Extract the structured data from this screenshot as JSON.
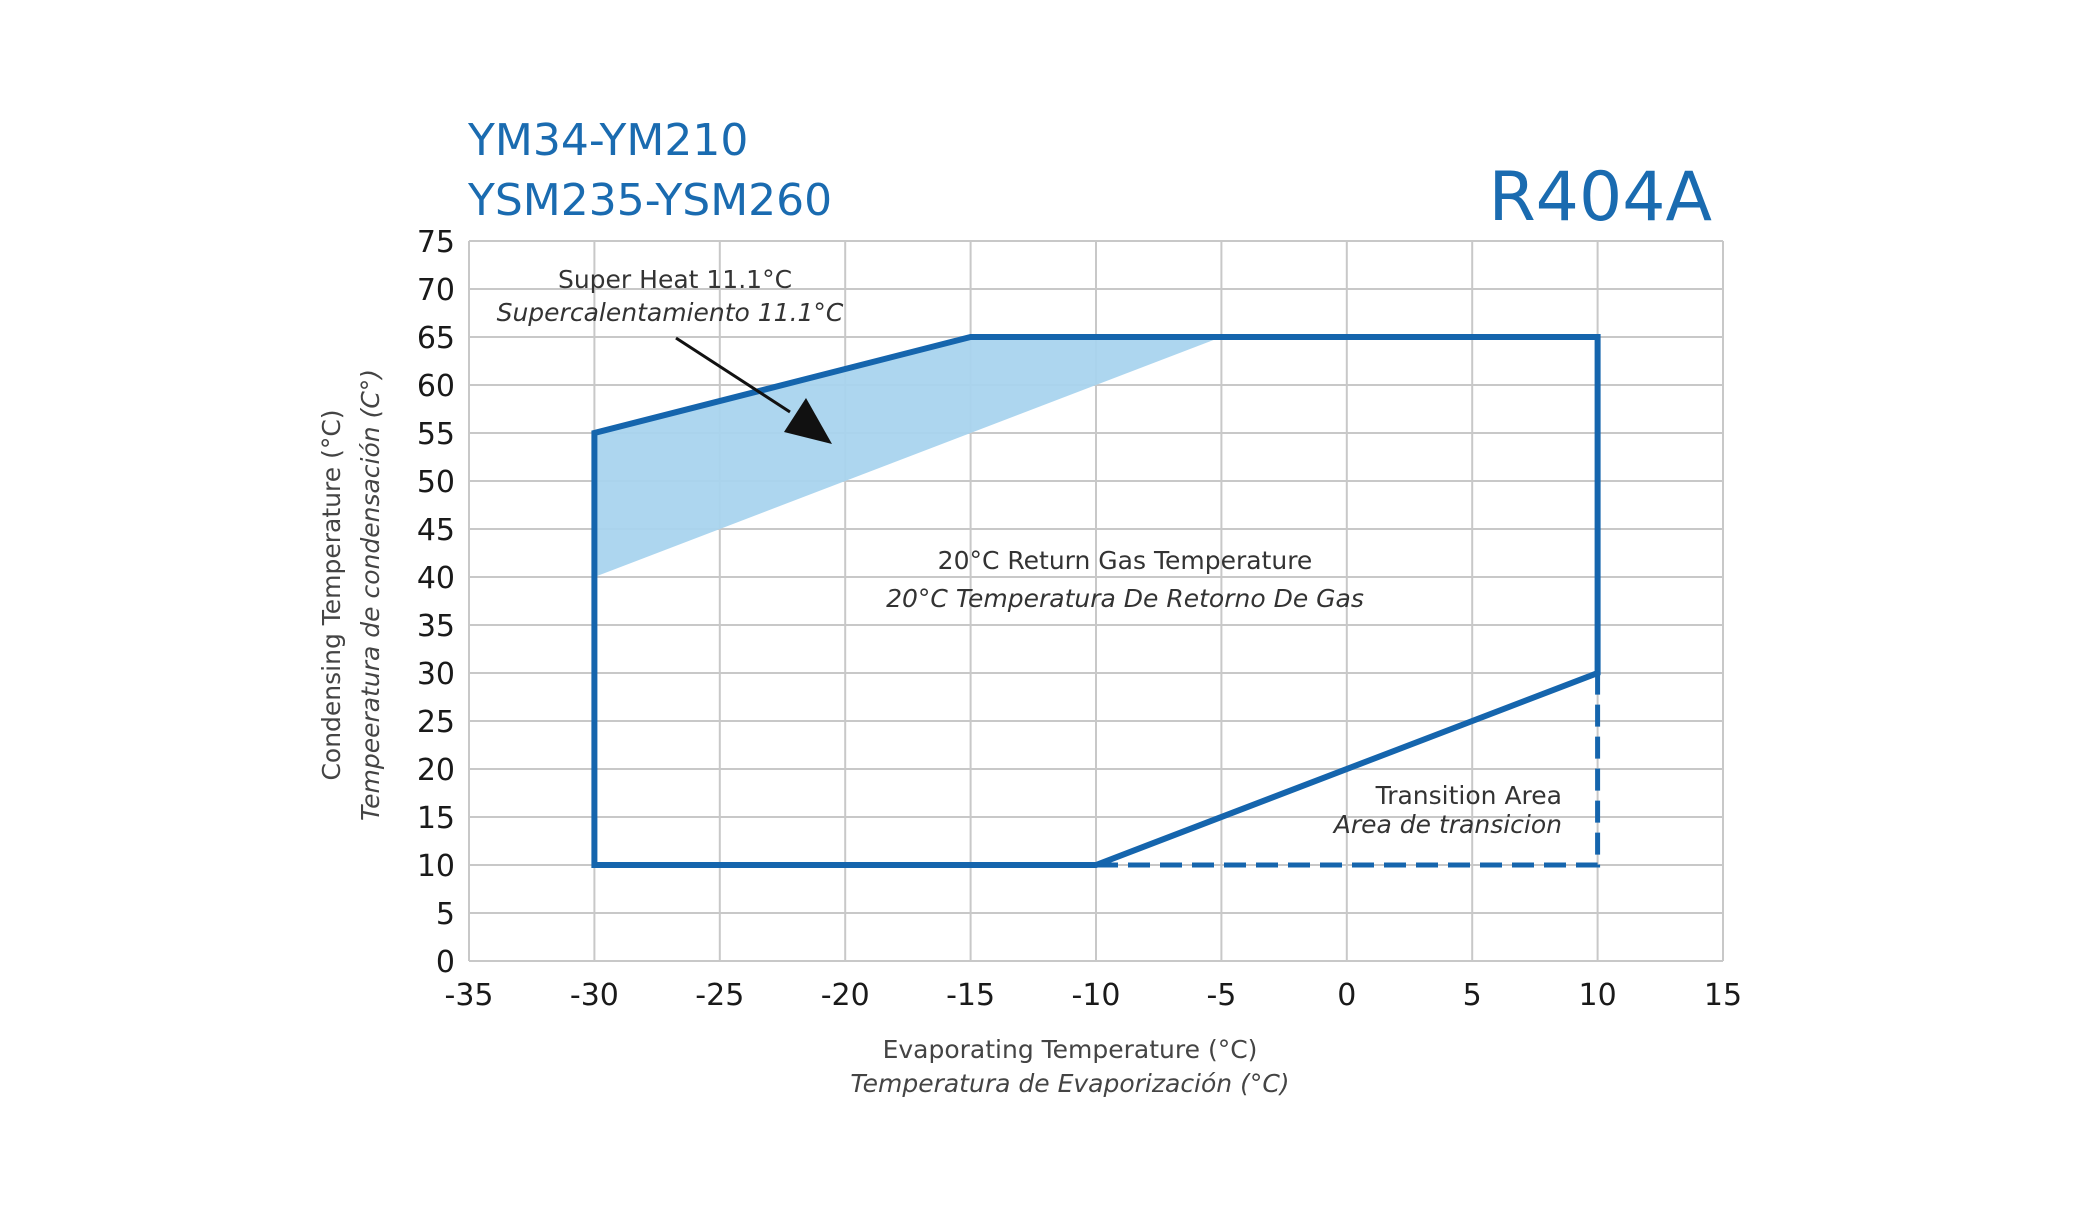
{
  "chart_data": {
    "type": "area",
    "title_lines": [
      "YM34-YM210",
      "YSM235-YSM260"
    ],
    "refrigerant": "R404A",
    "xlabel": "Evaporating Temperature (°C)",
    "xlabel_es": "Temperatura de Evaporización (°C)",
    "ylabel": "Condensing Temperature (°C)",
    "ylabel_es": "Tempeeratura de condensación (C°)",
    "xlim": [
      -35,
      15
    ],
    "ylim": [
      0,
      75
    ],
    "xticks": [
      -35,
      -30,
      -25,
      -20,
      -15,
      -10,
      -5,
      0,
      5,
      10,
      15
    ],
    "yticks": [
      0,
      5,
      10,
      15,
      20,
      25,
      30,
      35,
      40,
      45,
      50,
      55,
      60,
      65,
      70,
      75
    ],
    "grid": true,
    "series": [
      {
        "role": "envelope",
        "style": "solid",
        "x": [
          -30,
          -30,
          -15,
          10,
          10,
          -10,
          -30
        ],
        "y": [
          10,
          55,
          65,
          65,
          30,
          10,
          10
        ]
      },
      {
        "role": "transition-area-boundary",
        "style": "dashed",
        "x": [
          -10,
          10,
          10
        ],
        "y": [
          10,
          10,
          30
        ]
      },
      {
        "role": "super-heat-region",
        "style": "filled",
        "x": [
          -30,
          -15,
          -5,
          -30
        ],
        "y": [
          55,
          65,
          65,
          40
        ]
      }
    ],
    "annotations": {
      "superheat": {
        "line1": "Super Heat 11.1°C",
        "line2": "Supercalentamiento 11.1°C"
      },
      "return_gas": {
        "line1": "20°C Return Gas Temperature",
        "line2": "20°C Temperatura De Retorno De Gas"
      },
      "transition": {
        "line1": "Transition Area",
        "line2": "Area de transicion"
      }
    },
    "colors": {
      "envelope": "#1565ad",
      "fill": "#a9d4ee",
      "grid": "#c8c8c8",
      "arrow": "#111111",
      "title": "#1a6bb0"
    }
  }
}
